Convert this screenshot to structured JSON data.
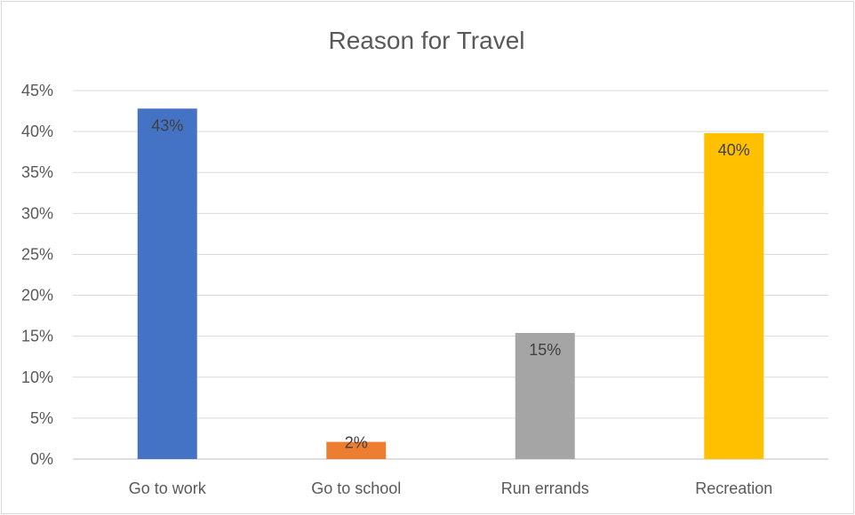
{
  "chart_data": {
    "type": "bar",
    "title": "Reason for Travel",
    "xlabel": "",
    "ylabel": "",
    "categories": [
      "Go to work",
      "Go to school",
      "Run errands",
      "Recreation"
    ],
    "values": [
      42.8,
      2.1,
      15.4,
      39.8
    ],
    "data_labels": [
      "43%",
      "2%",
      "15%",
      "40%"
    ],
    "colors": [
      "#4472c4",
      "#ed7d31",
      "#a5a5a5",
      "#ffc000"
    ],
    "ylim": [
      0,
      45
    ],
    "yticks": [
      0,
      5,
      10,
      15,
      20,
      25,
      30,
      35,
      40,
      45
    ],
    "ytick_labels": [
      "0%",
      "5%",
      "10%",
      "15%",
      "20%",
      "25%",
      "30%",
      "35%",
      "40%",
      "45%"
    ],
    "grid": true,
    "legend": "none"
  }
}
